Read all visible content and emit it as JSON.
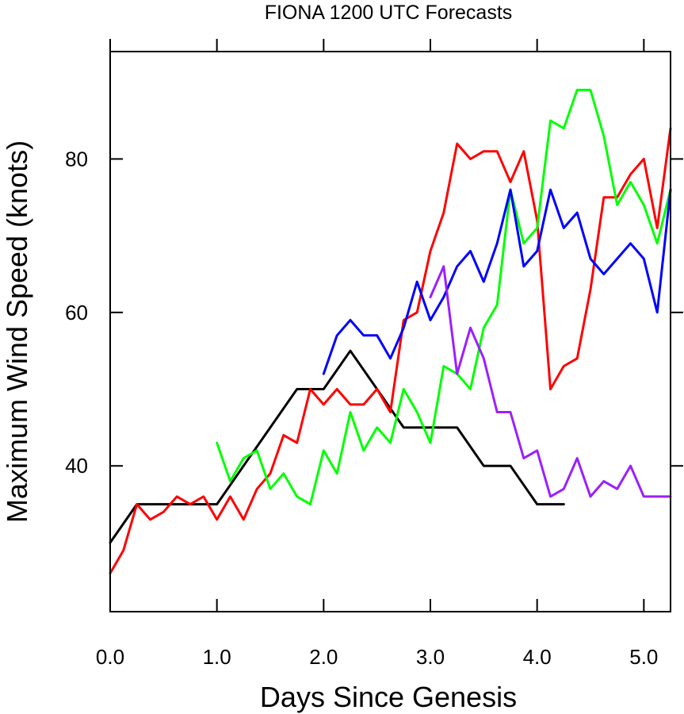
{
  "chart_data": {
    "type": "line",
    "title": "FIONA 1200 UTC Forecasts",
    "xlabel": "Days Since Genesis",
    "ylabel": "Maximum Wind Speed (knots)",
    "xlim": [
      0,
      5.25
    ],
    "ylim": [
      21,
      94
    ],
    "x_ticks": [
      0,
      1,
      2,
      3,
      4,
      5
    ],
    "x_tick_labels": [
      "0.0",
      "1.0",
      "2.0",
      "3.0",
      "4.0",
      "5.0"
    ],
    "y_ticks": [
      40,
      60,
      80
    ],
    "y_tick_labels": [
      "40",
      "60",
      "80"
    ],
    "grid": false,
    "legend": "none",
    "series": [
      {
        "color": "#000000",
        "x": [
          0.0,
          0.25,
          0.5,
          0.75,
          1.0,
          1.25,
          1.5,
          1.75,
          2.0,
          2.25,
          2.5,
          2.75,
          3.0,
          3.25,
          3.5,
          3.75,
          4.0,
          4.25
        ],
        "y": [
          30,
          35,
          35,
          35,
          35,
          40,
          45,
          50,
          50,
          55,
          50,
          45,
          45,
          45,
          40,
          40,
          35,
          35
        ]
      },
      {
        "color": "#ff0000",
        "x": [
          0.0,
          0.125,
          0.25,
          0.375,
          0.5,
          0.625,
          0.75,
          0.875,
          1.0,
          1.125,
          1.25,
          1.375,
          1.5,
          1.625,
          1.75,
          1.875,
          2.0,
          2.125,
          2.25,
          2.375,
          2.5,
          2.625,
          2.75,
          2.875,
          3.0,
          3.125,
          3.25,
          3.375,
          3.5,
          3.625,
          3.75,
          3.875,
          4.0,
          4.125,
          4.25,
          4.375,
          4.5,
          4.625,
          4.75,
          4.875,
          5.0,
          5.125,
          5.25
        ],
        "y": [
          26,
          29,
          35,
          33,
          34,
          36,
          35,
          36,
          33,
          36,
          33,
          37,
          39,
          44,
          43,
          50,
          48,
          50,
          48,
          48,
          50,
          47,
          59,
          60,
          68,
          73,
          82,
          80,
          81,
          81,
          77,
          81,
          72,
          50,
          53,
          54,
          63,
          75,
          75,
          78,
          80,
          71,
          84
        ]
      },
      {
        "color": "#00ff00",
        "x": [
          1.0,
          1.125,
          1.25,
          1.375,
          1.5,
          1.625,
          1.75,
          1.875,
          2.0,
          2.125,
          2.25,
          2.375,
          2.5,
          2.625,
          2.75,
          2.875,
          3.0,
          3.125,
          3.25,
          3.375,
          3.5,
          3.625,
          3.75,
          3.875,
          4.0,
          4.125,
          4.25,
          4.375,
          4.5,
          4.625,
          4.75,
          4.875,
          5.0,
          5.125,
          5.25
        ],
        "y": [
          43,
          38,
          41,
          42,
          37,
          39,
          36,
          35,
          42,
          39,
          47,
          42,
          45,
          43,
          50,
          47,
          43,
          53,
          52,
          50,
          58,
          61,
          76,
          69,
          71,
          85,
          84,
          89,
          89,
          83,
          74,
          77,
          74,
          69,
          76
        ]
      },
      {
        "color": "#0000ff",
        "x": [
          2.0,
          2.125,
          2.25,
          2.375,
          2.5,
          2.625,
          2.75,
          2.875,
          3.0,
          3.125,
          3.25,
          3.375,
          3.5,
          3.625,
          3.75,
          3.875,
          4.0,
          4.125,
          4.25,
          4.375,
          4.5,
          4.625,
          4.75,
          4.875,
          5.0,
          5.125,
          5.25
        ],
        "y": [
          52,
          57,
          59,
          57,
          57,
          54,
          58,
          64,
          59,
          62,
          66,
          68,
          64,
          69,
          76,
          66,
          68,
          76,
          71,
          73,
          67,
          65,
          67,
          69,
          67,
          60,
          76
        ]
      },
      {
        "color": "#9b1fff",
        "x": [
          3.0,
          3.125,
          3.25,
          3.375,
          3.5,
          3.625,
          3.75,
          3.875,
          4.0,
          4.125,
          4.25,
          4.375,
          4.5,
          4.625,
          4.75,
          4.875,
          5.0,
          5.125,
          5.25
        ],
        "y": [
          62,
          66,
          52,
          58,
          54,
          47,
          47,
          41,
          42,
          36,
          37,
          41,
          36,
          38,
          37,
          40,
          36,
          36,
          36
        ]
      }
    ]
  }
}
